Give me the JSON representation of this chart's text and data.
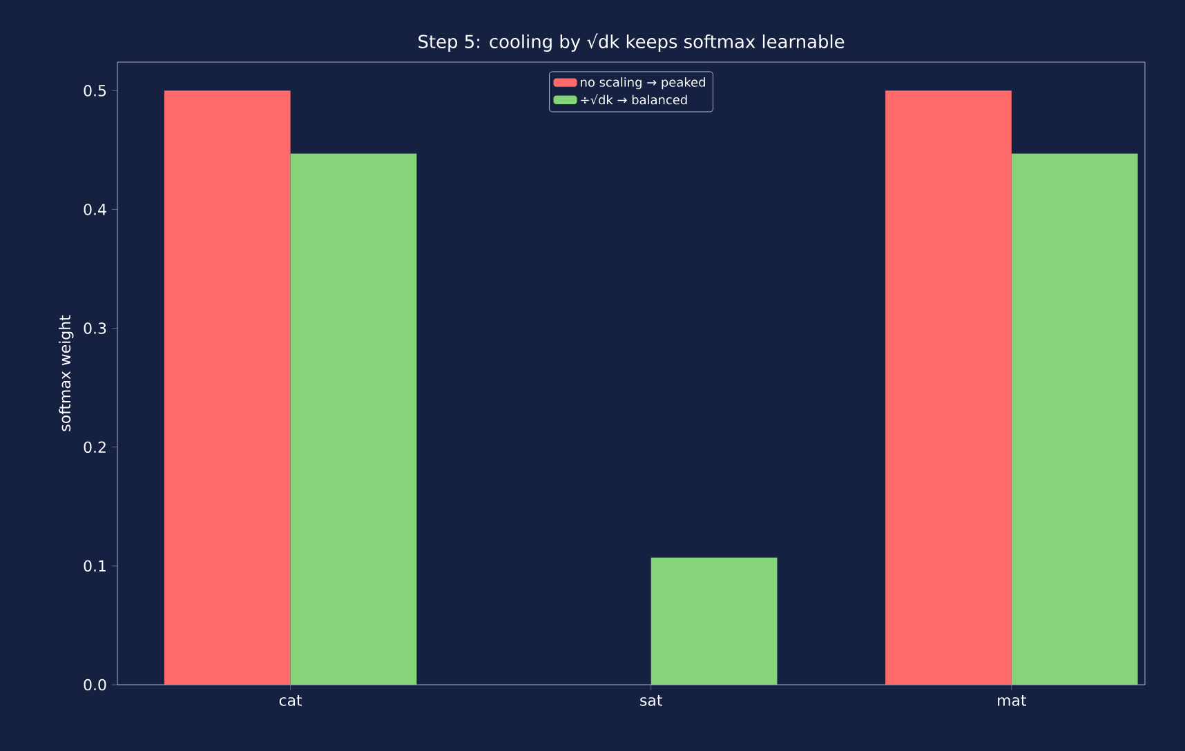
{
  "chart_data": {
    "type": "bar",
    "title": "Step 5: cooling by √dk keeps softmax learnable",
    "ylabel": "softmax weight",
    "categories": [
      "cat",
      "sat",
      "mat"
    ],
    "series": [
      {
        "name": "no scaling → peaked",
        "color": "#ff6b6b",
        "values": [
          0.5,
          0.0,
          0.5
        ]
      },
      {
        "name": "÷√dk → balanced",
        "color": "#86d479",
        "values": [
          0.447,
          0.107,
          0.447
        ]
      }
    ],
    "ylim": [
      0,
      0.524
    ],
    "yticks": [
      {
        "value": 0,
        "label": "0.0"
      },
      0.1,
      0.2,
      0.3,
      0.4,
      0.5
    ],
    "legend": "top",
    "grid": false
  }
}
